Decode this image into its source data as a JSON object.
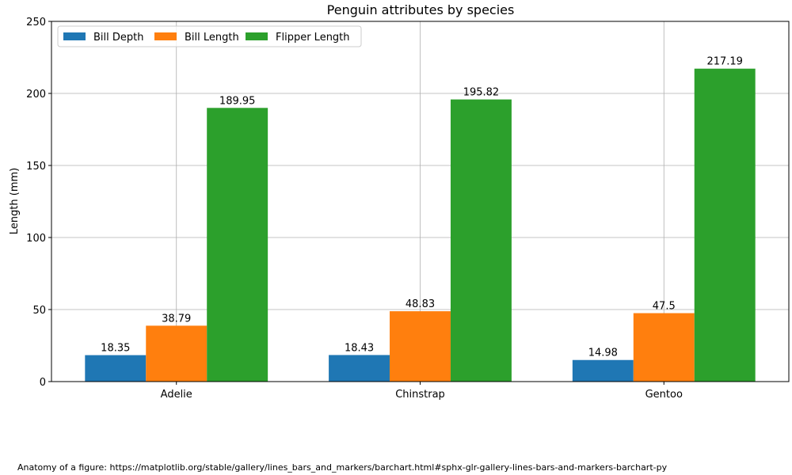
{
  "chart_data": {
    "type": "bar",
    "title": "Penguin attributes by species",
    "xlabel": "",
    "ylabel": "Length (mm)",
    "categories": [
      "Adelie",
      "Chinstrap",
      "Gentoo"
    ],
    "series": [
      {
        "name": "Bill Depth",
        "values": [
          18.35,
          18.43,
          14.98
        ],
        "color": "#1f77b4"
      },
      {
        "name": "Bill Length",
        "values": [
          38.79,
          48.83,
          47.5
        ],
        "color": "#ff7f0e"
      },
      {
        "name": "Flipper Length",
        "values": [
          189.95,
          195.82,
          217.19
        ],
        "color": "#2ca02c"
      }
    ],
    "ylim": [
      0,
      250
    ],
    "yticks": [
      0,
      50,
      100,
      150,
      200,
      250
    ],
    "grid": true,
    "legend_position": "top-left",
    "legend_columns": 3
  },
  "footer": {
    "caption": "Anatomy of a figure: https://matplotlib.org/stable/gallery/lines_bars_and_markers/barchart.html#sphx-glr-gallery-lines-bars-and-markers-barchart-py"
  }
}
